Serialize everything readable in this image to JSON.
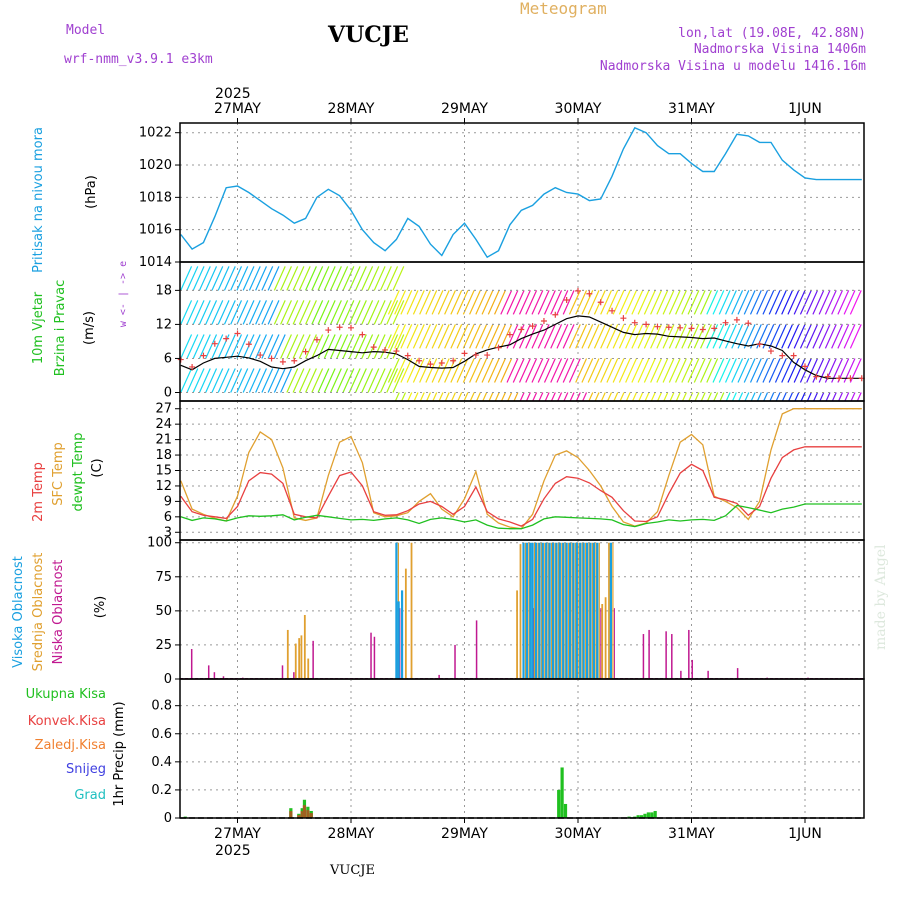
{
  "header": {
    "model_label": "Model",
    "model_name": "wrf-nmm_v3.9.1  e3km",
    "title": "VUCJE",
    "meteogram_label": "Meteogram",
    "location": "lon,lat (19.08E, 42.88N)",
    "elevation": "Nadmorska Visina 1406m",
    "model_elevation": "Nadmorska Visina u modelu 1416.16m",
    "footer_title": "VUCJE",
    "watermark": "made by Angel"
  },
  "dates": {
    "year": "2025",
    "labels": [
      "27MAY",
      "28MAY",
      "29MAY",
      "30MAY",
      "31MAY",
      "1JUN"
    ]
  },
  "colors": {
    "pressure": "#1aa0e0",
    "temp2m": "#e84040",
    "sfc": "#e0a030",
    "dewpt": "#20c020",
    "high_cloud": "#1aa0e0",
    "mid_cloud": "#e0a030",
    "low_cloud": "#c01890",
    "precip_total": "#20c020",
    "precip_conv": "#e84040",
    "precip_frozen": "#f08030",
    "snow": "#4040e0",
    "hail": "#20c0c0"
  },
  "chart_data": [
    {
      "type": "line",
      "name": "pressure",
      "ylabel": "Pritisak na nivou mora",
      "unit": "(hPa)",
      "ylim": [
        1014,
        1022.6
      ],
      "yticks": [
        1014,
        1016,
        1018,
        1020,
        1022
      ],
      "x_days": [
        0.0,
        0.1,
        0.2,
        0.3,
        0.4,
        0.5,
        0.6,
        0.7,
        0.8,
        0.9,
        1.0,
        1.1,
        1.2,
        1.3,
        1.4,
        1.5,
        1.6,
        1.7,
        1.8,
        1.9,
        2.0,
        2.1,
        2.2,
        2.3,
        2.4,
        2.5,
        2.6,
        2.7,
        2.8,
        2.9,
        3.0,
        3.1,
        3.2,
        3.3,
        3.4,
        3.5,
        3.6,
        3.7,
        3.8,
        3.9,
        4.0,
        4.1,
        4.2,
        4.3,
        4.4,
        4.5,
        4.6,
        4.7,
        4.8,
        4.9,
        5.0,
        5.1,
        5.2,
        5.3,
        5.4,
        5.5,
        5.6,
        5.7,
        5.8,
        5.9,
        6.0
      ],
      "values": [
        1015.7,
        1014.8,
        1015.2,
        1016.8,
        1018.6,
        1018.7,
        1018.3,
        1017.8,
        1017.3,
        1016.9,
        1016.4,
        1016.7,
        1018.0,
        1018.5,
        1018.1,
        1017.2,
        1016.0,
        1015.2,
        1014.7,
        1015.4,
        1016.7,
        1016.2,
        1015.1,
        1014.4,
        1015.7,
        1016.4,
        1015.4,
        1014.3,
        1014.7,
        1016.3,
        1017.2,
        1017.5,
        1018.2,
        1018.6,
        1018.3,
        1018.2,
        1017.8,
        1017.9,
        1019.3,
        1021.0,
        1022.3,
        1022.0,
        1021.2,
        1020.7,
        1020.7,
        1020.1,
        1019.6,
        1019.6,
        1020.7,
        1021.9,
        1021.8,
        1021.4,
        1021.4,
        1020.3,
        1019.7,
        1019.2,
        1019.1,
        1019.1,
        1019.1,
        1019.1,
        1019.1
      ]
    },
    {
      "type": "line",
      "name": "wind",
      "ylabel": "10m Vjetar",
      "ylabel2": "Brzina i Pravac",
      "unit": "(m/s)",
      "compass": "w <- | -> e",
      "ylim": [
        -1.5,
        23
      ],
      "yticks": [
        0,
        6,
        12,
        18
      ],
      "x_days": [
        0.0,
        0.1,
        0.2,
        0.3,
        0.4,
        0.5,
        0.6,
        0.7,
        0.8,
        0.9,
        1.0,
        1.1,
        1.2,
        1.3,
        1.4,
        1.5,
        1.6,
        1.7,
        1.8,
        1.9,
        2.0,
        2.1,
        2.2,
        2.3,
        2.4,
        2.5,
        2.6,
        2.7,
        2.8,
        2.9,
        3.0,
        3.1,
        3.2,
        3.3,
        3.4,
        3.5,
        3.6,
        3.7,
        3.8,
        3.9,
        4.0,
        4.1,
        4.2,
        4.3,
        4.4,
        4.5,
        4.6,
        4.7,
        4.8,
        4.9,
        5.0,
        5.1,
        5.2,
        5.3,
        5.4,
        5.5,
        5.6,
        5.7,
        5.8,
        5.9,
        6.0
      ],
      "speed": [
        4.8,
        4.0,
        5.2,
        6.0,
        6.2,
        6.4,
        6.1,
        5.5,
        4.5,
        4.2,
        4.5,
        5.6,
        6.5,
        7.6,
        7.4,
        7.2,
        7.0,
        7.2,
        7.1,
        6.8,
        5.8,
        4.6,
        4.4,
        4.3,
        4.4,
        5.5,
        6.8,
        7.5,
        8.0,
        8.4,
        9.5,
        10.3,
        11.0,
        12.0,
        13.0,
        13.5,
        13.3,
        12.4,
        11.5,
        10.6,
        10.2,
        10.4,
        10.3,
        9.9,
        9.8,
        9.7,
        9.5,
        9.6,
        9.1,
        8.6,
        8.2,
        8.6,
        8.2,
        7.4,
        5.3,
        4.0,
        3.0,
        2.5,
        2.5,
        2.5,
        2.5
      ],
      "gust": [
        5.8,
        4.5,
        6.5,
        8.6,
        9.5,
        10.4,
        8.5,
        6.6,
        6.0,
        5.4,
        5.6,
        7.2,
        9.3,
        11.0,
        11.5,
        11.4,
        10.2,
        8.0,
        7.5,
        7.3,
        6.5,
        5.6,
        5.0,
        5.2,
        5.6,
        6.9,
        6.6,
        6.6,
        7.9,
        10.2,
        11.1,
        11.7,
        12.6,
        13.7,
        16.3,
        17.9,
        17.4,
        15.9,
        14.4,
        13.1,
        12.3,
        12.0,
        11.6,
        11.5,
        11.4,
        11.3,
        11.1,
        11.3,
        12.3,
        12.8,
        12.2,
        8.5,
        7.3,
        6.5,
        6.5,
        4.6,
        2.8,
        2.8,
        2.5,
        2.5,
        2.5
      ]
    },
    {
      "type": "line",
      "name": "temperature",
      "labels": [
        "2m Temp",
        "SFC Temp",
        "dewpt Temp"
      ],
      "unit": "(C)",
      "ylim": [
        1.5,
        28.5
      ],
      "yticks": [
        3,
        6,
        9,
        12,
        15,
        18,
        21,
        24,
        27
      ],
      "x_days": [
        0.0,
        0.1,
        0.2,
        0.3,
        0.4,
        0.5,
        0.6,
        0.7,
        0.8,
        0.9,
        1.0,
        1.1,
        1.2,
        1.3,
        1.4,
        1.5,
        1.6,
        1.7,
        1.8,
        1.9,
        2.0,
        2.1,
        2.2,
        2.3,
        2.4,
        2.5,
        2.6,
        2.7,
        2.8,
        2.9,
        3.0,
        3.1,
        3.2,
        3.3,
        3.4,
        3.5,
        3.6,
        3.7,
        3.8,
        3.9,
        4.0,
        4.1,
        4.2,
        4.3,
        4.4,
        4.5,
        4.6,
        4.7,
        4.8,
        4.9,
        5.0,
        5.1,
        5.2,
        5.3,
        5.4,
        5.5,
        5.6,
        5.7,
        5.8,
        5.9,
        6.0
      ],
      "t2m": [
        10.0,
        7.0,
        6.3,
        6.0,
        5.7,
        8.0,
        13.0,
        14.6,
        14.3,
        12.5,
        6.5,
        6.0,
        5.8,
        10.0,
        14.0,
        14.7,
        12.0,
        7.0,
        6.3,
        6.4,
        7.2,
        8.5,
        9.0,
        8.0,
        6.5,
        8.0,
        11.8,
        7.0,
        5.6,
        5.0,
        4.2,
        5.5,
        9.5,
        12.5,
        13.8,
        13.5,
        12.6,
        11.1,
        9.8,
        7.2,
        5.2,
        5.1,
        6.0,
        10.5,
        14.5,
        16.2,
        15.0,
        9.8,
        9.3,
        8.6,
        6.3,
        8.0,
        13.5,
        17.5,
        19.0,
        19.6,
        19.6,
        19.6,
        19.6,
        19.6,
        19.6
      ],
      "sfc": [
        13.0,
        7.5,
        6.5,
        5.7,
        5.2,
        10.0,
        18.5,
        22.5,
        21.0,
        15.5,
        5.8,
        5.3,
        5.8,
        14.0,
        20.5,
        21.6,
        16.5,
        6.8,
        6.0,
        6.2,
        6.8,
        9.0,
        10.5,
        7.5,
        6.0,
        9.5,
        14.8,
        6.5,
        4.8,
        4.0,
        3.7,
        6.5,
        13.0,
        18.0,
        18.8,
        17.5,
        15.0,
        12.0,
        8.0,
        5.0,
        4.2,
        4.8,
        7.0,
        14.0,
        20.5,
        22.0,
        20.0,
        10.0,
        9.0,
        7.8,
        5.5,
        9.0,
        19.0,
        26.0,
        27.0,
        27.0,
        27.0,
        27.0,
        27.0,
        27.0,
        27.0
      ],
      "dewpt": [
        6.0,
        5.3,
        5.8,
        5.6,
        5.2,
        5.8,
        6.2,
        6.1,
        6.2,
        6.4,
        5.4,
        5.9,
        6.3,
        6.0,
        5.7,
        5.4,
        5.5,
        5.3,
        5.6,
        5.8,
        5.4,
        4.7,
        5.5,
        5.8,
        5.5,
        5.0,
        5.4,
        4.4,
        3.8,
        3.7,
        3.7,
        4.4,
        5.6,
        6.0,
        5.9,
        5.8,
        5.7,
        5.6,
        5.4,
        4.5,
        4.1,
        4.7,
        5.0,
        5.4,
        5.2,
        5.4,
        5.5,
        5.3,
        6.2,
        8.2,
        7.8,
        7.3,
        6.8,
        7.5,
        7.9,
        8.5,
        8.5,
        8.5,
        8.5,
        8.5,
        8.5
      ]
    },
    {
      "type": "bar",
      "name": "cloud",
      "labels": [
        "Visoka Oblacnost",
        "Srednja Oblacnost",
        "Niska Oblacnost"
      ],
      "unit": "(%)",
      "ylim": [
        0,
        102
      ],
      "yticks": [
        0,
        25,
        50,
        75,
        100
      ],
      "bars": [
        {
          "d": 0.07,
          "l": 22
        },
        {
          "d": 0.22,
          "l": 10
        },
        {
          "d": 0.27,
          "l": 5
        },
        {
          "d": 0.35,
          "l": 2
        },
        {
          "d": 0.52,
          "l": 1
        },
        {
          "d": 0.87,
          "l": 10
        },
        {
          "d": 0.93,
          "m": 36
        },
        {
          "d": 0.97,
          "l": 5
        },
        {
          "d": 1.0,
          "m": 26
        },
        {
          "d": 1.03,
          "m": 30
        },
        {
          "d": 1.05,
          "m": 32
        },
        {
          "d": 1.08,
          "m": 47
        },
        {
          "d": 1.11,
          "m": 15
        },
        {
          "d": 1.14,
          "l": 28
        },
        {
          "d": 1.65,
          "l": 34
        },
        {
          "d": 1.68,
          "l": 31
        },
        {
          "d": 1.88,
          "l": 26
        },
        {
          "d": 1.9,
          "h": 100
        },
        {
          "d": 1.92,
          "h": 57
        },
        {
          "d": 1.95,
          "h": 65
        },
        {
          "d": 1.97,
          "m": 81
        },
        {
          "d": 2.02,
          "m": 100
        },
        {
          "d": 2.25,
          "l": 3
        },
        {
          "d": 2.39,
          "l": 25
        },
        {
          "d": 2.58,
          "l": 43
        },
        {
          "d": 2.95,
          "m": 65
        },
        {
          "d": 2.98,
          "m": 99
        },
        {
          "d": 3.02,
          "h": 100
        },
        {
          "d": 3.05,
          "h": 100
        },
        {
          "d": 3.08,
          "h": 100
        },
        {
          "d": 3.1,
          "h": 100
        },
        {
          "d": 3.13,
          "h": 100
        },
        {
          "d": 3.16,
          "h": 100
        },
        {
          "d": 3.19,
          "h": 100
        },
        {
          "d": 3.22,
          "h": 100
        },
        {
          "d": 3.25,
          "h": 100
        },
        {
          "d": 3.28,
          "h": 100
        },
        {
          "d": 3.31,
          "h": 100
        },
        {
          "d": 3.34,
          "h": 100
        },
        {
          "d": 3.37,
          "h": 100
        },
        {
          "d": 3.4,
          "h": 100
        },
        {
          "d": 3.43,
          "h": 100
        },
        {
          "d": 3.46,
          "h": 100
        },
        {
          "d": 3.49,
          "h": 100
        },
        {
          "d": 3.52,
          "h": 100
        },
        {
          "d": 3.55,
          "h": 100
        },
        {
          "d": 3.58,
          "h": 100
        },
        {
          "d": 3.61,
          "h": 100
        },
        {
          "d": 3.64,
          "h": 100
        },
        {
          "d": 3.67,
          "h": 100
        },
        {
          "d": 3.7,
          "m": 55
        },
        {
          "d": 3.73,
          "m": 60
        },
        {
          "d": 3.76,
          "m": 100
        },
        {
          "d": 3.79,
          "h": 100
        },
        {
          "d": 4.05,
          "l": 33
        },
        {
          "d": 4.1,
          "l": 36
        },
        {
          "d": 4.25,
          "l": 35
        },
        {
          "d": 4.3,
          "l": 33
        },
        {
          "d": 4.38,
          "l": 6
        },
        {
          "d": 4.45,
          "l": 36
        },
        {
          "d": 4.48,
          "l": 14
        },
        {
          "d": 4.62,
          "l": 6
        },
        {
          "d": 4.88,
          "l": 8
        },
        {
          "d": 5.14,
          "l": 1
        },
        {
          "d": 5.5,
          "l": 1
        }
      ]
    },
    {
      "type": "bar",
      "name": "precipitation",
      "labels": [
        "Ukupna Kisa",
        "Konvek.Kisa",
        "Zaledj.Kisa",
        "Snijeg",
        "Grad"
      ],
      "ylabel": "1hr Precip (mm)",
      "ylim": [
        0,
        0.99
      ],
      "yticks": [
        0,
        0.2,
        0.4,
        0.6,
        0.8
      ],
      "ytick_labels": [
        "0",
        "0.2",
        "0.4",
        "0.6",
        "0.8"
      ],
      "bars": [
        {
          "d": 0.04,
          "v": 0.01
        },
        {
          "d": 0.97,
          "v": 0.07
        },
        {
          "d": 1.04,
          "v": 0.03
        },
        {
          "d": 1.07,
          "v": 0.07
        },
        {
          "d": 1.09,
          "v": 0.13
        },
        {
          "d": 1.12,
          "v": 0.08
        },
        {
          "d": 1.15,
          "v": 0.05
        },
        {
          "d": 3.33,
          "v": 0.2
        },
        {
          "d": 3.36,
          "v": 0.36
        },
        {
          "d": 3.39,
          "v": 0.1
        },
        {
          "d": 3.95,
          "v": 0.01
        },
        {
          "d": 4.0,
          "v": 0.01
        },
        {
          "d": 4.03,
          "v": 0.02
        },
        {
          "d": 4.06,
          "v": 0.02
        },
        {
          "d": 4.09,
          "v": 0.03
        },
        {
          "d": 4.12,
          "v": 0.04
        },
        {
          "d": 4.15,
          "v": 0.04
        },
        {
          "d": 4.18,
          "v": 0.05
        }
      ]
    }
  ]
}
